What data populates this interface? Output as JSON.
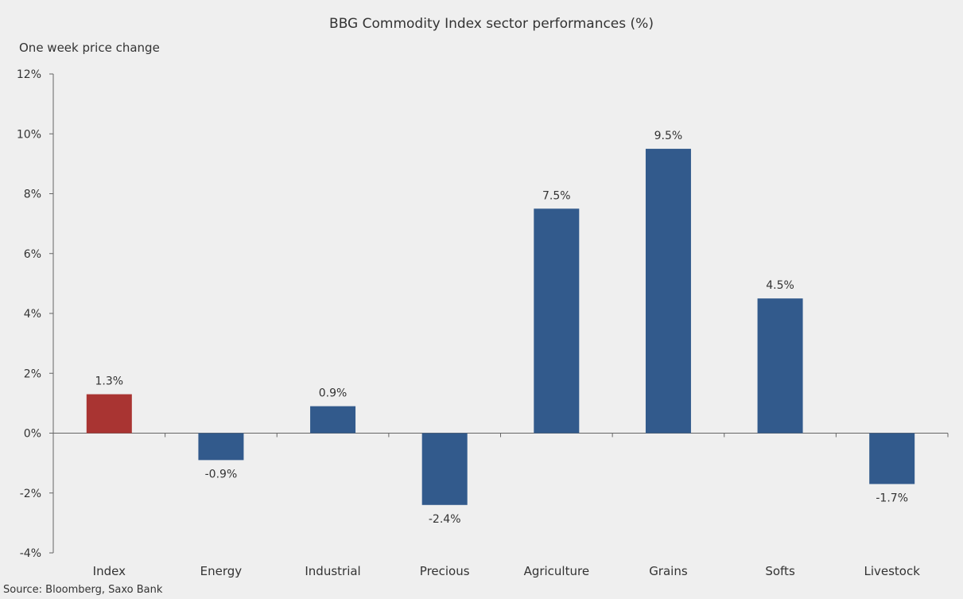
{
  "chart_data": {
    "type": "bar",
    "title": "BBG  Commodity  Index  sector  performances  (%)",
    "subtitle": "One week price change",
    "xlabel": "",
    "ylabel": "",
    "categories": [
      "Index",
      "Energy",
      "Industrial",
      "Precious",
      "Agriculture",
      "Grains",
      "Softs",
      "Livestock"
    ],
    "values": [
      1.3,
      -0.9,
      0.9,
      -2.4,
      7.5,
      9.5,
      4.5,
      -1.7
    ],
    "data_labels": [
      "1.3%",
      "-0.9%",
      "0.9%",
      "-2.4%",
      "7.5%",
      "9.5%",
      "4.5%",
      "-1.7%"
    ],
    "bar_colors": [
      "#a93432",
      "#325a8c",
      "#325a8c",
      "#325a8c",
      "#325a8c",
      "#325a8c",
      "#325a8c",
      "#325a8c"
    ],
    "ylim": [
      -4,
      12
    ],
    "yticks": [
      -4,
      -2,
      0,
      2,
      4,
      6,
      8,
      10,
      12
    ],
    "ytick_labels": [
      "-4%",
      "-2%",
      "0%",
      "2%",
      "4%",
      "6%",
      "8%",
      "10%",
      "12%"
    ],
    "grid": false,
    "legend": "none",
    "background": "#efefef"
  },
  "source": "Source: Bloomberg, Saxo Bank"
}
